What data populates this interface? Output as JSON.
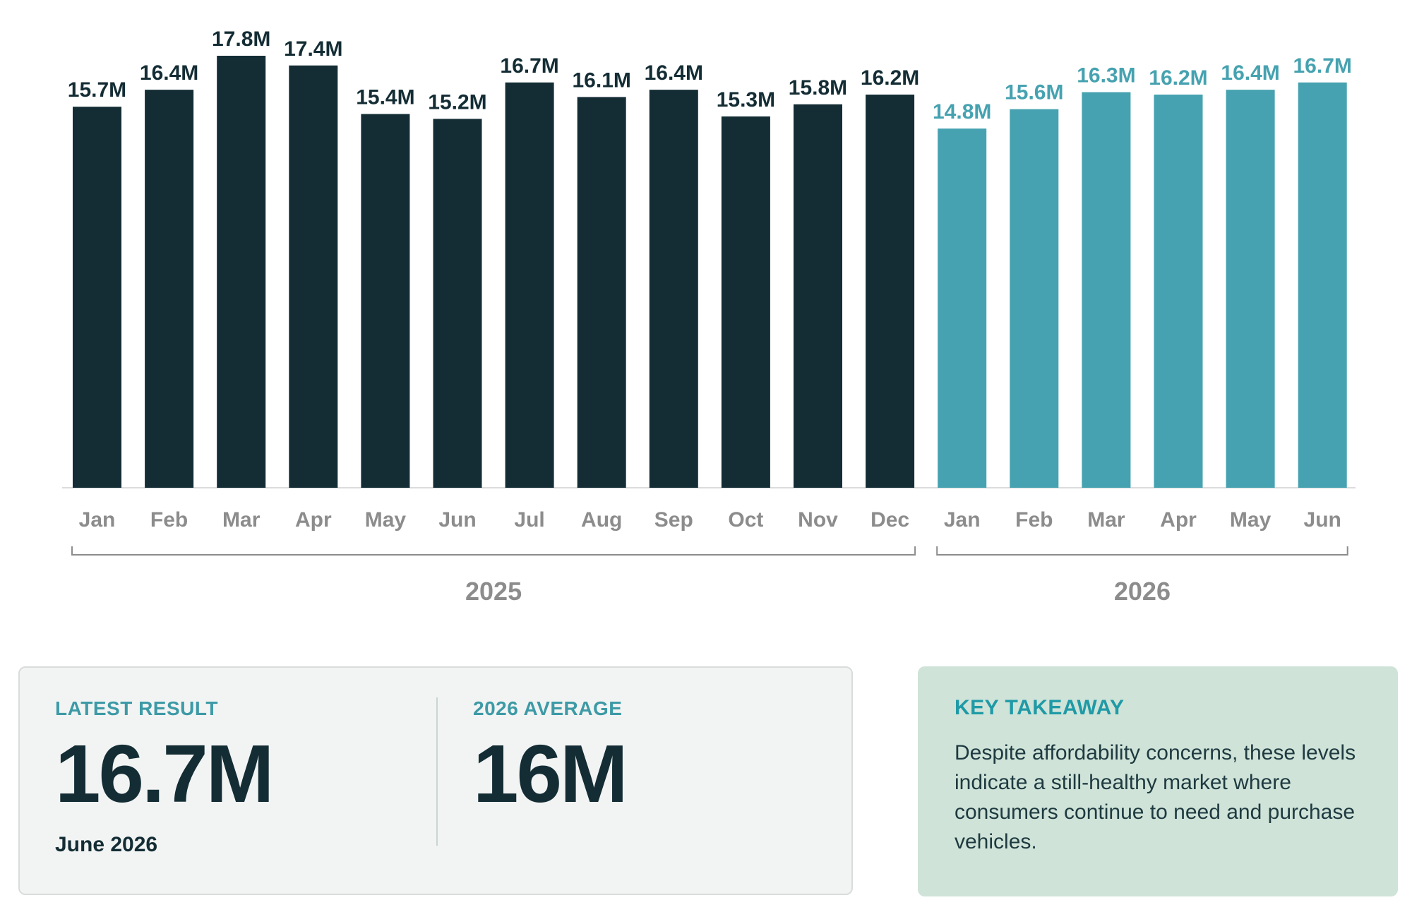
{
  "chart_data": {
    "type": "bar",
    "categories": [
      "Jan",
      "Feb",
      "Mar",
      "Apr",
      "May",
      "Jun",
      "Jul",
      "Aug",
      "Sep",
      "Oct",
      "Nov",
      "Dec",
      "Jan",
      "Feb",
      "Mar",
      "Apr",
      "May",
      "Jun"
    ],
    "groups": [
      {
        "label": "2025",
        "start": 0,
        "end": 11,
        "color": "#142d35"
      },
      {
        "label": "2026",
        "start": 12,
        "end": 17,
        "color": "#46a2b0"
      }
    ],
    "values": [
      15.7,
      16.4,
      17.8,
      17.4,
      15.4,
      15.2,
      16.7,
      16.1,
      16.4,
      15.3,
      15.8,
      16.2,
      14.8,
      15.6,
      16.3,
      16.2,
      16.4,
      16.7
    ],
    "value_labels": [
      "15.7M",
      "16.4M",
      "17.8M",
      "17.4M",
      "15.4M",
      "15.2M",
      "16.7M",
      "16.1M",
      "16.4M",
      "15.3M",
      "15.8M",
      "16.2M",
      "14.8M",
      "15.6M",
      "16.3M",
      "16.2M",
      "16.4M",
      "16.7M"
    ],
    "ylim": [
      0,
      17.8
    ],
    "grid": false,
    "legend": "none"
  },
  "stats": {
    "latest_label": "LATEST RESULT",
    "latest_value": "16.7M",
    "latest_sub": "June 2026",
    "average_label": "2026 AVERAGE",
    "average_value": "16M"
  },
  "takeaway": {
    "title": "KEY TAKEAWAY",
    "text": "Despite affordability concerns, these levels indicate a still-healthy market where consumers continue to need and purchase vehicles."
  }
}
